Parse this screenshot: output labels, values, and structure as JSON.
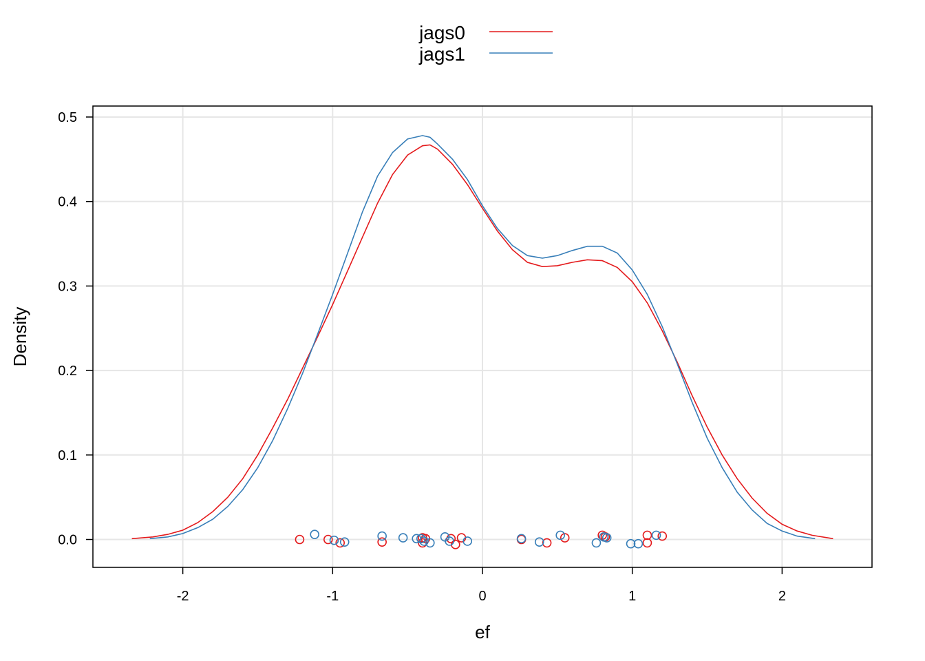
{
  "chart_data": {
    "type": "line",
    "xlabel": "ef",
    "ylabel": "Density",
    "xlim": [
      -2.6,
      2.6
    ],
    "ylim": [
      -0.033,
      0.513
    ],
    "x_ticks": [
      "-2",
      "-1",
      "0",
      "1",
      "2"
    ],
    "x_tick_values": [
      -2,
      -1,
      0,
      1,
      2
    ],
    "y_ticks": [
      "0.0",
      "0.1",
      "0.2",
      "0.3",
      "0.4",
      "0.5"
    ],
    "y_tick_values": [
      0.0,
      0.1,
      0.2,
      0.3,
      0.4,
      0.5
    ],
    "grid": true,
    "legend_position": "top",
    "series": [
      {
        "name": "jags0",
        "color": "#e41a1c",
        "x": [
          -2.34,
          -2.2,
          -2.1,
          -2.0,
          -1.9,
          -1.8,
          -1.7,
          -1.6,
          -1.5,
          -1.4,
          -1.3,
          -1.2,
          -1.1,
          -1.0,
          -0.9,
          -0.8,
          -0.7,
          -0.6,
          -0.5,
          -0.4,
          -0.35,
          -0.3,
          -0.2,
          -0.1,
          0.0,
          0.1,
          0.2,
          0.3,
          0.4,
          0.5,
          0.6,
          0.7,
          0.8,
          0.9,
          1.0,
          1.1,
          1.2,
          1.3,
          1.4,
          1.5,
          1.6,
          1.7,
          1.8,
          1.9,
          2.0,
          2.1,
          2.2,
          2.34
        ],
        "y": [
          0.001,
          0.003,
          0.006,
          0.011,
          0.02,
          0.033,
          0.05,
          0.072,
          0.1,
          0.132,
          0.166,
          0.203,
          0.24,
          0.278,
          0.318,
          0.358,
          0.398,
          0.432,
          0.455,
          0.466,
          0.467,
          0.462,
          0.444,
          0.42,
          0.392,
          0.365,
          0.343,
          0.328,
          0.323,
          0.324,
          0.328,
          0.331,
          0.33,
          0.322,
          0.305,
          0.28,
          0.247,
          0.21,
          0.17,
          0.133,
          0.1,
          0.072,
          0.049,
          0.031,
          0.018,
          0.01,
          0.005,
          0.001
        ]
      },
      {
        "name": "jags1",
        "color": "#377eb8",
        "x": [
          -2.22,
          -2.1,
          -2.0,
          -1.9,
          -1.8,
          -1.7,
          -1.6,
          -1.5,
          -1.4,
          -1.3,
          -1.2,
          -1.1,
          -1.0,
          -0.9,
          -0.8,
          -0.7,
          -0.6,
          -0.5,
          -0.4,
          -0.35,
          -0.3,
          -0.2,
          -0.1,
          0.0,
          0.1,
          0.2,
          0.3,
          0.4,
          0.5,
          0.6,
          0.7,
          0.8,
          0.9,
          1.0,
          1.1,
          1.2,
          1.3,
          1.4,
          1.5,
          1.6,
          1.7,
          1.8,
          1.9,
          2.0,
          2.1,
          2.22
        ],
        "y": [
          0.001,
          0.003,
          0.007,
          0.014,
          0.024,
          0.039,
          0.059,
          0.085,
          0.117,
          0.155,
          0.197,
          0.243,
          0.29,
          0.339,
          0.388,
          0.43,
          0.458,
          0.474,
          0.478,
          0.476,
          0.468,
          0.45,
          0.426,
          0.395,
          0.368,
          0.348,
          0.336,
          0.333,
          0.336,
          0.342,
          0.347,
          0.347,
          0.339,
          0.319,
          0.29,
          0.252,
          0.208,
          0.162,
          0.12,
          0.085,
          0.056,
          0.035,
          0.019,
          0.01,
          0.004,
          0.001
        ]
      }
    ],
    "rug_points": {
      "jags0": [
        -1.22,
        -1.03,
        -0.95,
        -0.67,
        -0.4,
        -0.4,
        -0.38,
        -0.21,
        -0.18,
        -0.14,
        0.26,
        0.43,
        0.55,
        0.8,
        0.82,
        1.1,
        1.1,
        1.2
      ],
      "jags1": [
        -1.12,
        -0.99,
        -0.92,
        -0.67,
        -0.53,
        -0.44,
        -0.41,
        -0.39,
        -0.35,
        -0.25,
        -0.22,
        -0.1,
        0.26,
        0.38,
        0.52,
        0.76,
        0.81,
        0.83,
        0.99,
        1.04,
        1.16
      ]
    },
    "rug_jitter": {
      "jags0": [
        0.0,
        0.0,
        -0.004,
        -0.003,
        -0.004,
        0.002,
        0.001,
        0.001,
        -0.006,
        0.002,
        0.0,
        -0.004,
        0.002,
        0.005,
        0.003,
        0.005,
        -0.004,
        0.004
      ],
      "jags1": [
        0.006,
        -0.001,
        -0.003,
        0.004,
        0.002,
        0.001,
        0.001,
        -0.002,
        -0.004,
        0.003,
        -0.002,
        -0.002,
        0.001,
        -0.003,
        0.005,
        -0.004,
        0.003,
        0.002,
        -0.005,
        -0.005,
        0.005
      ]
    }
  }
}
